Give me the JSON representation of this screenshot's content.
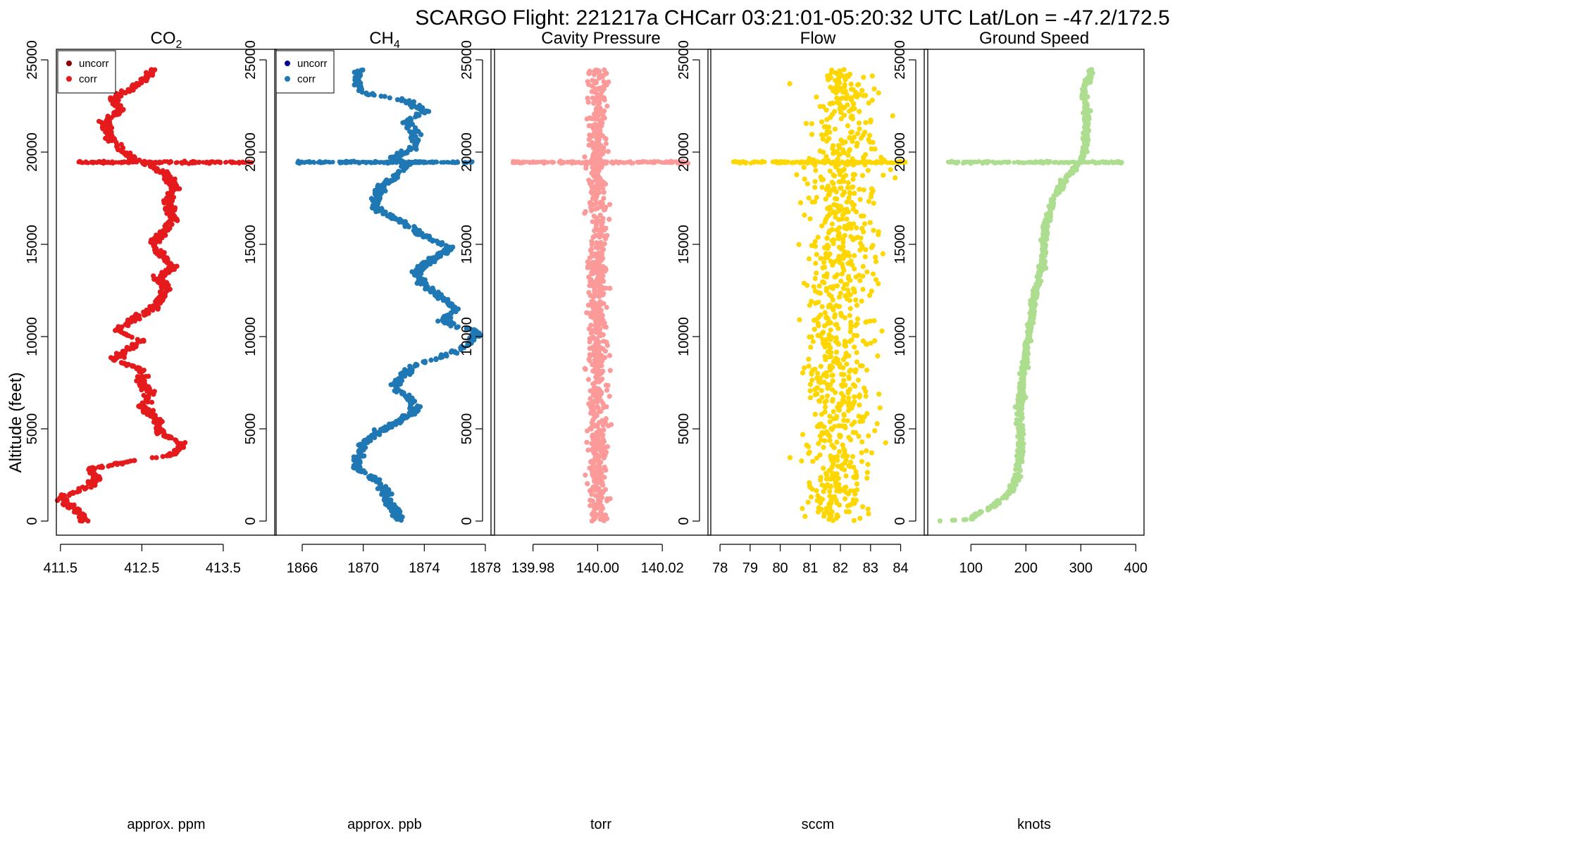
{
  "title": "SCARGO Flight: 221217a  CHCarr  03:21:01-05:20:32 UTC  Lat/Lon = -47.2/172.5",
  "ylabel": "Altitude (feet)",
  "legend": {
    "uncorr": "uncorr",
    "corr": "corr"
  },
  "colors": {
    "co2": "#e41a1c",
    "co2_uncorr": "#8b0000",
    "ch4": "#1f78b4",
    "ch4_uncorr": "#00008b",
    "pressure": "#fb9a99",
    "flow": "#ffd700",
    "speed": "#addd8e",
    "axis": "#000000"
  },
  "chart_data": [
    {
      "type": "scatter",
      "title": "CO",
      "title_sub": "2",
      "xlabel": "approx. ppm",
      "ylabel": "Altitude (feet)",
      "xlim": [
        411.45,
        414.15
      ],
      "ylim": [
        0,
        25000
      ],
      "xticks": [
        411.5,
        412.5,
        413.5
      ],
      "xtick_labels": [
        "411.5",
        "412.5",
        "413.5"
      ],
      "yticks": [
        0,
        5000,
        10000,
        15000,
        20000,
        25000
      ],
      "ytick_labels": [
        "0",
        "5000",
        "10000",
        "15000",
        "20000",
        "25000"
      ],
      "legend_labels": [
        "uncorr",
        "corr"
      ],
      "series": [
        {
          "name": "corr",
          "profile": [
            [
              0,
              411.8
            ],
            [
              400,
              411.75
            ],
            [
              900,
              411.6
            ],
            [
              1300,
              411.5
            ],
            [
              1800,
              411.8
            ],
            [
              2300,
              411.95
            ],
            [
              2800,
              411.85
            ],
            [
              3200,
              412.3
            ],
            [
              3600,
              412.9
            ],
            [
              4200,
              413.0
            ],
            [
              4800,
              412.7
            ],
            [
              5500,
              412.7
            ],
            [
              6200,
              412.5
            ],
            [
              7000,
              412.6
            ],
            [
              7500,
              412.5
            ],
            [
              8200,
              412.5
            ],
            [
              8700,
              412.15
            ],
            [
              9200,
              412.3
            ],
            [
              9800,
              412.5
            ],
            [
              10300,
              412.2
            ],
            [
              11000,
              412.4
            ],
            [
              11700,
              412.7
            ],
            [
              12500,
              412.8
            ],
            [
              13200,
              412.7
            ],
            [
              13800,
              412.9
            ],
            [
              14500,
              412.7
            ],
            [
              15200,
              412.65
            ],
            [
              15800,
              412.8
            ],
            [
              16500,
              412.9
            ],
            [
              17200,
              412.8
            ],
            [
              18000,
              412.9
            ],
            [
              18800,
              412.8
            ],
            [
              19500,
              412.5
            ],
            [
              19700,
              412.4
            ],
            [
              20300,
              412.2
            ],
            [
              21000,
              412.1
            ],
            [
              21700,
              412.05
            ],
            [
              22300,
              412.25
            ],
            [
              22900,
              412.15
            ],
            [
              23500,
              412.4
            ],
            [
              24000,
              412.55
            ],
            [
              24500,
              412.65
            ]
          ],
          "spread": 0.07
        }
      ]
    },
    {
      "type": "scatter",
      "title": "CH",
      "title_sub": "4",
      "xlabel": "approx. ppb",
      "ylabel": "",
      "xlim": [
        1864.2,
        1878.6
      ],
      "ylim": [
        0,
        25000
      ],
      "xticks": [
        1866,
        1870,
        1874,
        1878
      ],
      "xtick_labels": [
        "1866",
        "1870",
        "1874",
        "1878"
      ],
      "yticks": [
        0,
        5000,
        10000,
        15000,
        20000,
        25000
      ],
      "ytick_labels": [
        "0",
        "5000",
        "10000",
        "15000",
        "20000",
        "25000"
      ],
      "legend_labels": [
        "uncorr",
        "corr"
      ],
      "series": [
        {
          "name": "corr",
          "profile": [
            [
              0,
              1872.5
            ],
            [
              600,
              1872.0
            ],
            [
              1200,
              1871.5
            ],
            [
              1800,
              1871.3
            ],
            [
              2400,
              1870.5
            ],
            [
              3000,
              1869.5
            ],
            [
              3600,
              1869.7
            ],
            [
              4200,
              1870.0
            ],
            [
              4800,
              1871.0
            ],
            [
              5500,
              1872.5
            ],
            [
              6000,
              1873.5
            ],
            [
              6600,
              1873.2
            ],
            [
              7200,
              1872.2
            ],
            [
              7800,
              1872.5
            ],
            [
              8400,
              1873.2
            ],
            [
              9000,
              1875.5
            ],
            [
              9600,
              1876.8
            ],
            [
              10200,
              1877.6
            ],
            [
              10800,
              1875.3
            ],
            [
              11500,
              1876.0
            ],
            [
              12200,
              1875.0
            ],
            [
              12800,
              1874.0
            ],
            [
              13500,
              1873.5
            ],
            [
              14200,
              1874.5
            ],
            [
              14800,
              1875.8
            ],
            [
              15500,
              1873.8
            ],
            [
              16100,
              1872.8
            ],
            [
              16800,
              1871.0
            ],
            [
              17500,
              1870.8
            ],
            [
              18200,
              1871.3
            ],
            [
              18800,
              1872.2
            ],
            [
              19300,
              1872.8
            ],
            [
              19700,
              1872.0
            ],
            [
              20300,
              1873.5
            ],
            [
              21000,
              1873.3
            ],
            [
              21700,
              1872.8
            ],
            [
              22200,
              1874.0
            ],
            [
              22800,
              1872.8
            ],
            [
              23200,
              1870.0
            ],
            [
              23800,
              1869.5
            ],
            [
              24400,
              1869.8
            ]
          ],
          "spread": 0.35
        }
      ]
    },
    {
      "type": "scatter",
      "title": "Cavity Pressure",
      "title_sub": "",
      "xlabel": "torr",
      "ylabel": "",
      "xlim": [
        139.967,
        140.035
      ],
      "ylim": [
        0,
        25000
      ],
      "xticks": [
        139.98,
        140.0,
        140.02
      ],
      "xtick_labels": [
        "139.98",
        "140.00",
        "140.02"
      ],
      "yticks": [
        0,
        5000,
        10000,
        15000,
        20000,
        25000
      ],
      "ytick_labels": [
        "0",
        "5000",
        "10000",
        "15000",
        "20000",
        "25000"
      ],
      "series": [
        {
          "name": "pressure",
          "profile": [
            [
              0,
              140.0
            ],
            [
              25000,
              140.0
            ]
          ],
          "spread": 0.003
        }
      ]
    },
    {
      "type": "scatter",
      "title": "Flow",
      "title_sub": "",
      "xlabel": "sccm",
      "ylabel": "",
      "xlim": [
        77.6,
        84.9
      ],
      "ylim": [
        0,
        25000
      ],
      "xticks": [
        78,
        79,
        80,
        81,
        82,
        83,
        84
      ],
      "xtick_labels": [
        "78",
        "79",
        "80",
        "81",
        "82",
        "83",
        "84"
      ],
      "yticks": [
        0,
        5000,
        10000,
        15000,
        20000,
        25000
      ],
      "ytick_labels": [
        "0",
        "5000",
        "10000",
        "15000",
        "20000",
        "25000"
      ],
      "series": [
        {
          "name": "flow",
          "profile": [
            [
              0,
              81.8
            ],
            [
              25000,
              82.2
            ]
          ],
          "spread": 1.2
        }
      ]
    },
    {
      "type": "scatter",
      "title": "Ground Speed",
      "title_sub": "",
      "xlabel": "knots",
      "ylabel": "",
      "xlim": [
        15,
        415
      ],
      "ylim": [
        0,
        25000
      ],
      "xticks": [
        100,
        200,
        300,
        400
      ],
      "xtick_labels": [
        "100",
        "200",
        "300",
        "400"
      ],
      "yticks": [
        0,
        5000,
        10000,
        15000,
        20000,
        25000
      ],
      "ytick_labels": [
        "0",
        "5000",
        "10000",
        "15000",
        "20000",
        "25000"
      ],
      "series": [
        {
          "name": "speed",
          "profile": [
            [
              0,
              40
            ],
            [
              100,
              100
            ],
            [
              400,
              110
            ],
            [
              800,
              140
            ],
            [
              1500,
              170
            ],
            [
              2500,
              185
            ],
            [
              4000,
              190
            ],
            [
              6000,
              190
            ],
            [
              8000,
              195
            ],
            [
              10000,
              205
            ],
            [
              12000,
              215
            ],
            [
              14000,
              230
            ],
            [
              16000,
              235
            ],
            [
              17500,
              250
            ],
            [
              18500,
              270
            ],
            [
              19500,
              300
            ],
            [
              20500,
              310
            ],
            [
              22000,
              310
            ],
            [
              23500,
              305
            ],
            [
              24500,
              320
            ]
          ],
          "spread": 6
        }
      ]
    }
  ]
}
